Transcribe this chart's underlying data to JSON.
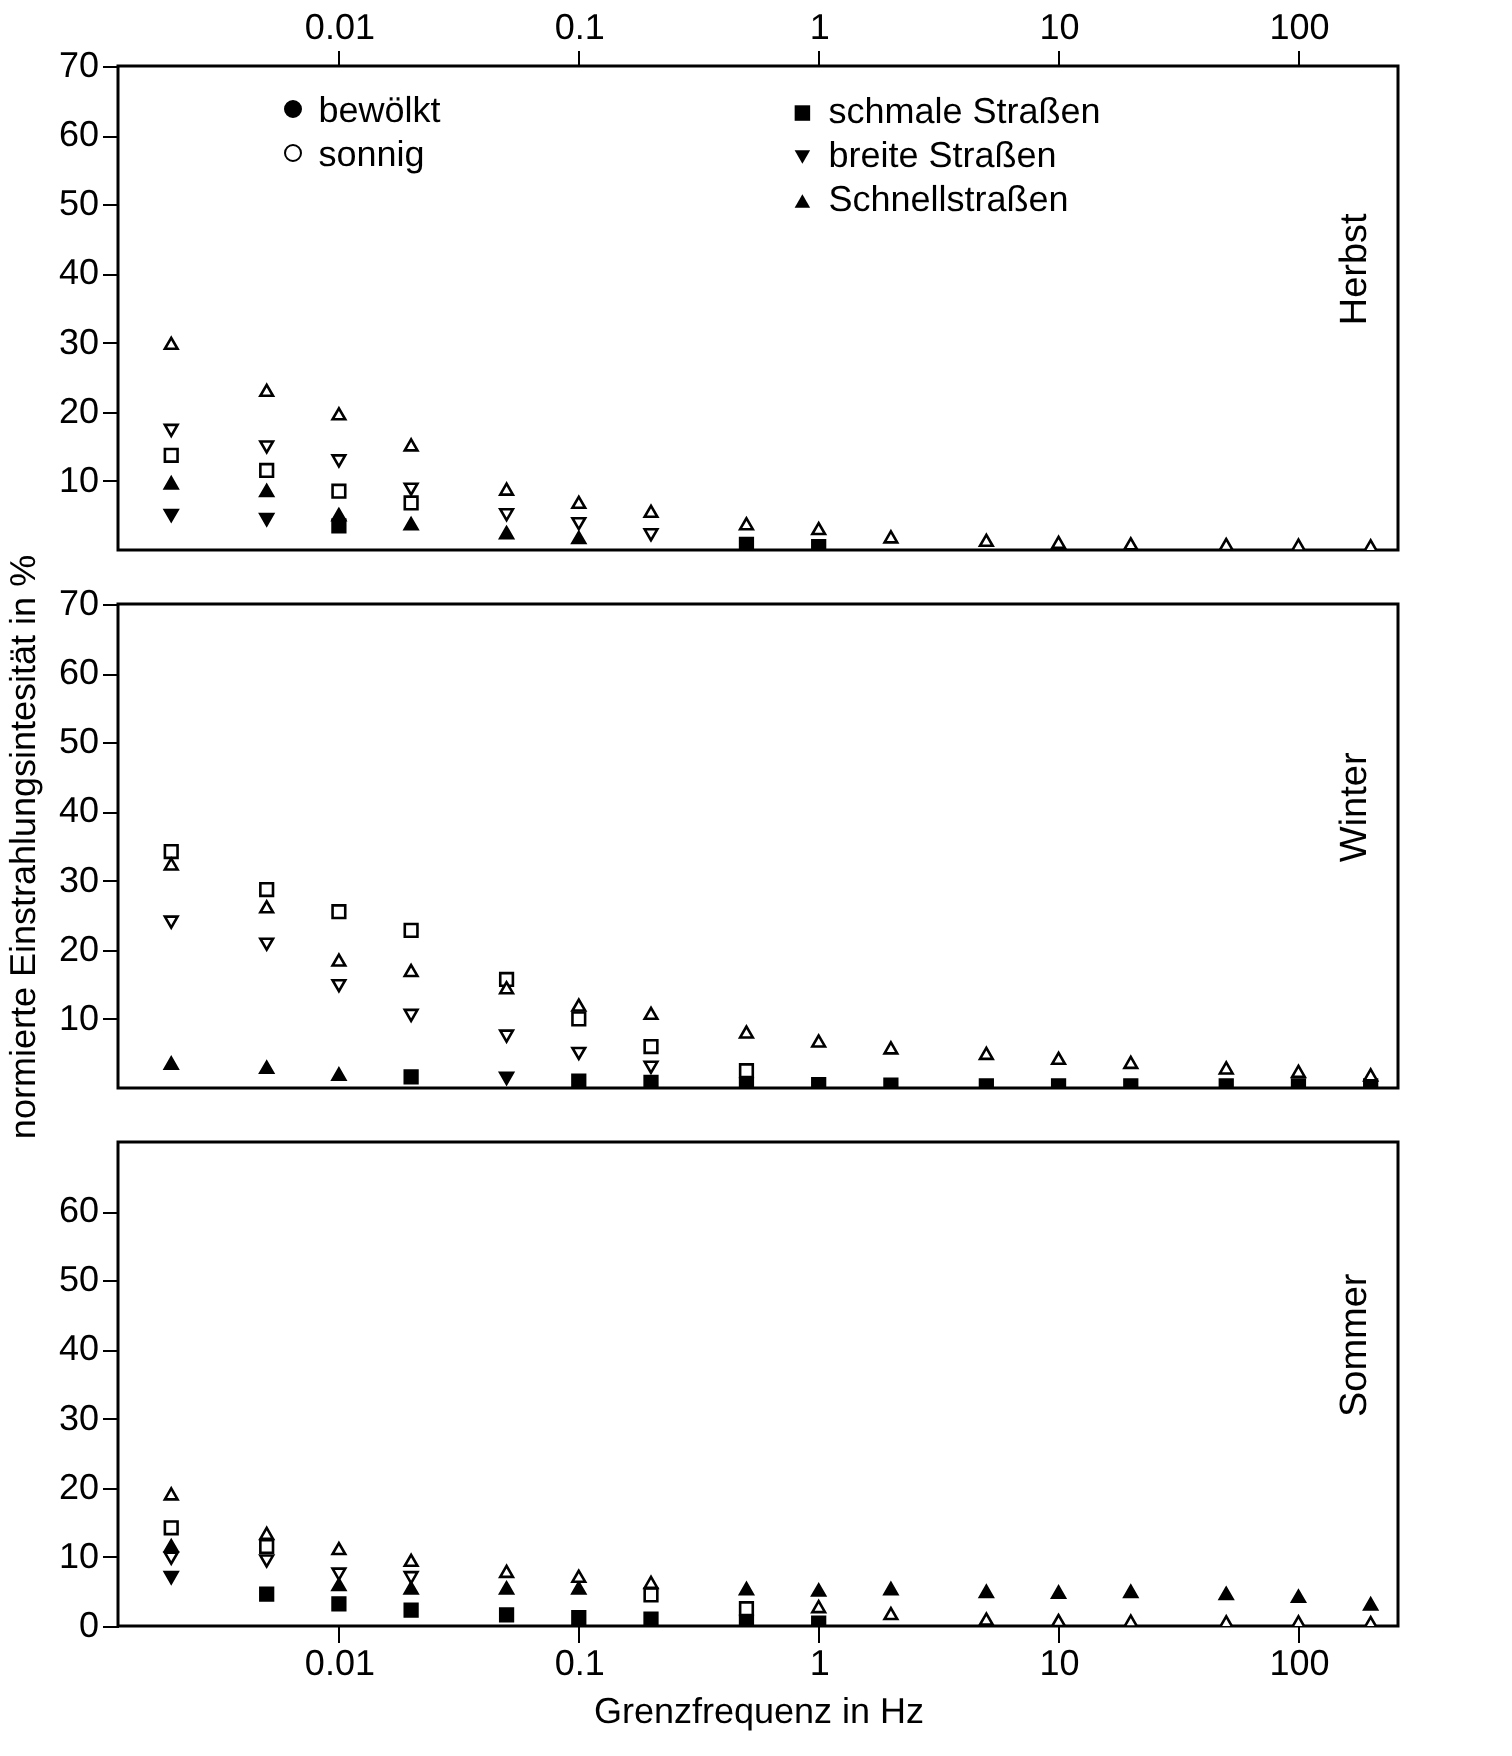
{
  "chart_data": [
    {
      "type": "scatter",
      "title": "Herbst",
      "annotations": [
        "bewölkt",
        "sonnig"
      ],
      "legend": "top",
      "log": "x",
      "xlim": [
        0.0012,
        260
      ],
      "xticks": [
        0.01,
        0.1,
        1,
        10,
        100
      ],
      "ylim": [
        0,
        70
      ],
      "yticks": [
        10,
        20,
        30,
        40,
        50,
        60,
        70
      ],
      "x": [
        0.002,
        0.005,
        0.01,
        0.02,
        0.05,
        0.1,
        0.2,
        0.5,
        1,
        2,
        5,
        10,
        20,
        50,
        100,
        200
      ],
      "series": [
        {
          "name": "schmale Straßen",
          "color": "#000000",
          "marker": "square",
          "values": [
            null,
            null,
            3.5,
            null,
            null,
            null,
            null,
            0.8,
            0.5,
            null,
            null,
            null,
            null,
            null,
            null,
            null
          ]
        },
        {
          "name": "breite Straßen",
          "color": "#000000",
          "marker": "triangle-down",
          "values": [
            5,
            4.4,
            null,
            null,
            null,
            null,
            null,
            null,
            null,
            null,
            null,
            null,
            null,
            null,
            null,
            null
          ]
        },
        {
          "name": "Schnellstraßen",
          "color": "#000000",
          "marker": "triangle",
          "values": [
            9.7,
            8.6,
            5.1,
            3.8,
            2.5,
            1.8,
            null,
            null,
            null,
            null,
            null,
            null,
            null,
            null,
            null,
            null
          ]
        },
        {
          "color": "#ffffff",
          "marker": "square",
          "values": [
            13.7,
            11.5,
            8.5,
            6.8,
            null,
            null,
            null,
            null,
            null,
            null,
            null,
            null,
            null,
            null,
            null,
            null
          ]
        },
        {
          "color": "#ffffff",
          "marker": "triangle-down",
          "values": [
            17.3,
            14.9,
            12.9,
            8.8,
            5.1,
            3.8,
            2.2,
            null,
            null,
            null,
            null,
            null,
            null,
            null,
            null,
            null
          ]
        },
        {
          "color": "#ffffff",
          "marker": "triangle",
          "values": [
            29.9,
            23.1,
            19.7,
            15.2,
            8.8,
            6.9,
            5.6,
            3.8,
            3.1,
            1.9,
            1.4,
            1.1,
            0.9,
            0.8,
            0.7,
            0.6
          ]
        }
      ]
    },
    {
      "type": "scatter",
      "title": "Winter",
      "ylabel": "normierte Einstrahlungsintesität in %",
      "log": "x",
      "xlim": [
        0.0012,
        260
      ],
      "tick_labels": "y",
      "ylim": [
        0,
        70
      ],
      "yticks": [
        10,
        20,
        30,
        40,
        50,
        60,
        70
      ],
      "x": [
        0.002,
        0.005,
        0.01,
        0.02,
        0.05,
        0.1,
        0.2,
        0.5,
        1,
        2,
        5,
        10,
        20,
        50,
        100,
        200
      ],
      "series": [
        {
          "color": "#000000",
          "marker": "square",
          "values": [
            null,
            null,
            null,
            1.6,
            null,
            1,
            0.8,
            0.5,
            0.5,
            0.4,
            0.3,
            0.3,
            0.3,
            0.3,
            0.3,
            0.3
          ]
        },
        {
          "color": "#000000",
          "marker": "triangle-down",
          "values": [
            null,
            null,
            null,
            null,
            1.4,
            null,
            null,
            null,
            null,
            null,
            null,
            null,
            null,
            null,
            null,
            null
          ]
        },
        {
          "color": "#000000",
          "marker": "triangle",
          "values": [
            3.6,
            3,
            2,
            null,
            null,
            null,
            null,
            null,
            null,
            null,
            null,
            null,
            null,
            null,
            null,
            null
          ]
        },
        {
          "color": "#ffffff",
          "marker": "square",
          "values": [
            34.2,
            28.7,
            25.5,
            22.8,
            15.7,
            10,
            6,
            2.5,
            null,
            null,
            null,
            null,
            null,
            null,
            null,
            null
          ]
        },
        {
          "color": "#ffffff",
          "marker": "triangle-down",
          "values": [
            24,
            20.8,
            14.8,
            10.5,
            7.5,
            5,
            3,
            null,
            null,
            null,
            null,
            null,
            null,
            null,
            null,
            null
          ]
        },
        {
          "color": "#ffffff",
          "marker": "triangle",
          "values": [
            32.4,
            26.2,
            18.5,
            17,
            14.5,
            12,
            10.8,
            8.1,
            6.8,
            5.8,
            5,
            4.3,
            3.7,
            2.9,
            2.4,
            1.9
          ]
        }
      ]
    },
    {
      "type": "scatter",
      "title": "Sommer",
      "xlabel": "Grenzfrequenz in Hz",
      "log": "x",
      "xlim": [
        0.0012,
        260
      ],
      "xticks": [
        0.01,
        0.1,
        1,
        10,
        100
      ],
      "ylim": [
        0,
        70
      ],
      "yticks": [
        0,
        10,
        20,
        30,
        40,
        50,
        60
      ],
      "x": [
        0.002,
        0.005,
        0.01,
        0.02,
        0.05,
        0.1,
        0.2,
        0.5,
        1,
        2,
        5,
        10,
        20,
        50,
        100,
        200
      ],
      "series": [
        {
          "color": "#000000",
          "marker": "square",
          "values": [
            null,
            4.6,
            3.2,
            2.3,
            1.6,
            1.2,
            1,
            0.6,
            0.4,
            null,
            null,
            null,
            null,
            null,
            null,
            null
          ]
        },
        {
          "color": "#000000",
          "marker": "triangle-down",
          "values": [
            7,
            null,
            null,
            null,
            null,
            null,
            null,
            null,
            null,
            null,
            null,
            null,
            null,
            null,
            null,
            null
          ]
        },
        {
          "color": "#000000",
          "marker": "triangle",
          "values": [
            11.6,
            null,
            6,
            5.5,
            5.5,
            5.5,
            null,
            5.4,
            5.2,
            5.4,
            5,
            4.9,
            5,
            4.7,
            4.3,
            3.2
          ]
        },
        {
          "color": "#ffffff",
          "marker": "square",
          "values": [
            14.2,
            11.5,
            null,
            null,
            null,
            null,
            4.5,
            2.5,
            null,
            null,
            null,
            null,
            null,
            null,
            null,
            null
          ]
        },
        {
          "color": "#ffffff",
          "marker": "triangle-down",
          "values": [
            9.8,
            9.4,
            7.5,
            7,
            null,
            null,
            null,
            null,
            null,
            null,
            null,
            null,
            null,
            null,
            null,
            null
          ]
        },
        {
          "color": "#ffffff",
          "marker": "triangle",
          "values": [
            19.1,
            13.4,
            11.2,
            9.5,
            7.9,
            7.2,
            6.3,
            null,
            2.8,
            1.8,
            1,
            0.8,
            0.7,
            0.6,
            0.6,
            0.5
          ]
        }
      ]
    }
  ]
}
